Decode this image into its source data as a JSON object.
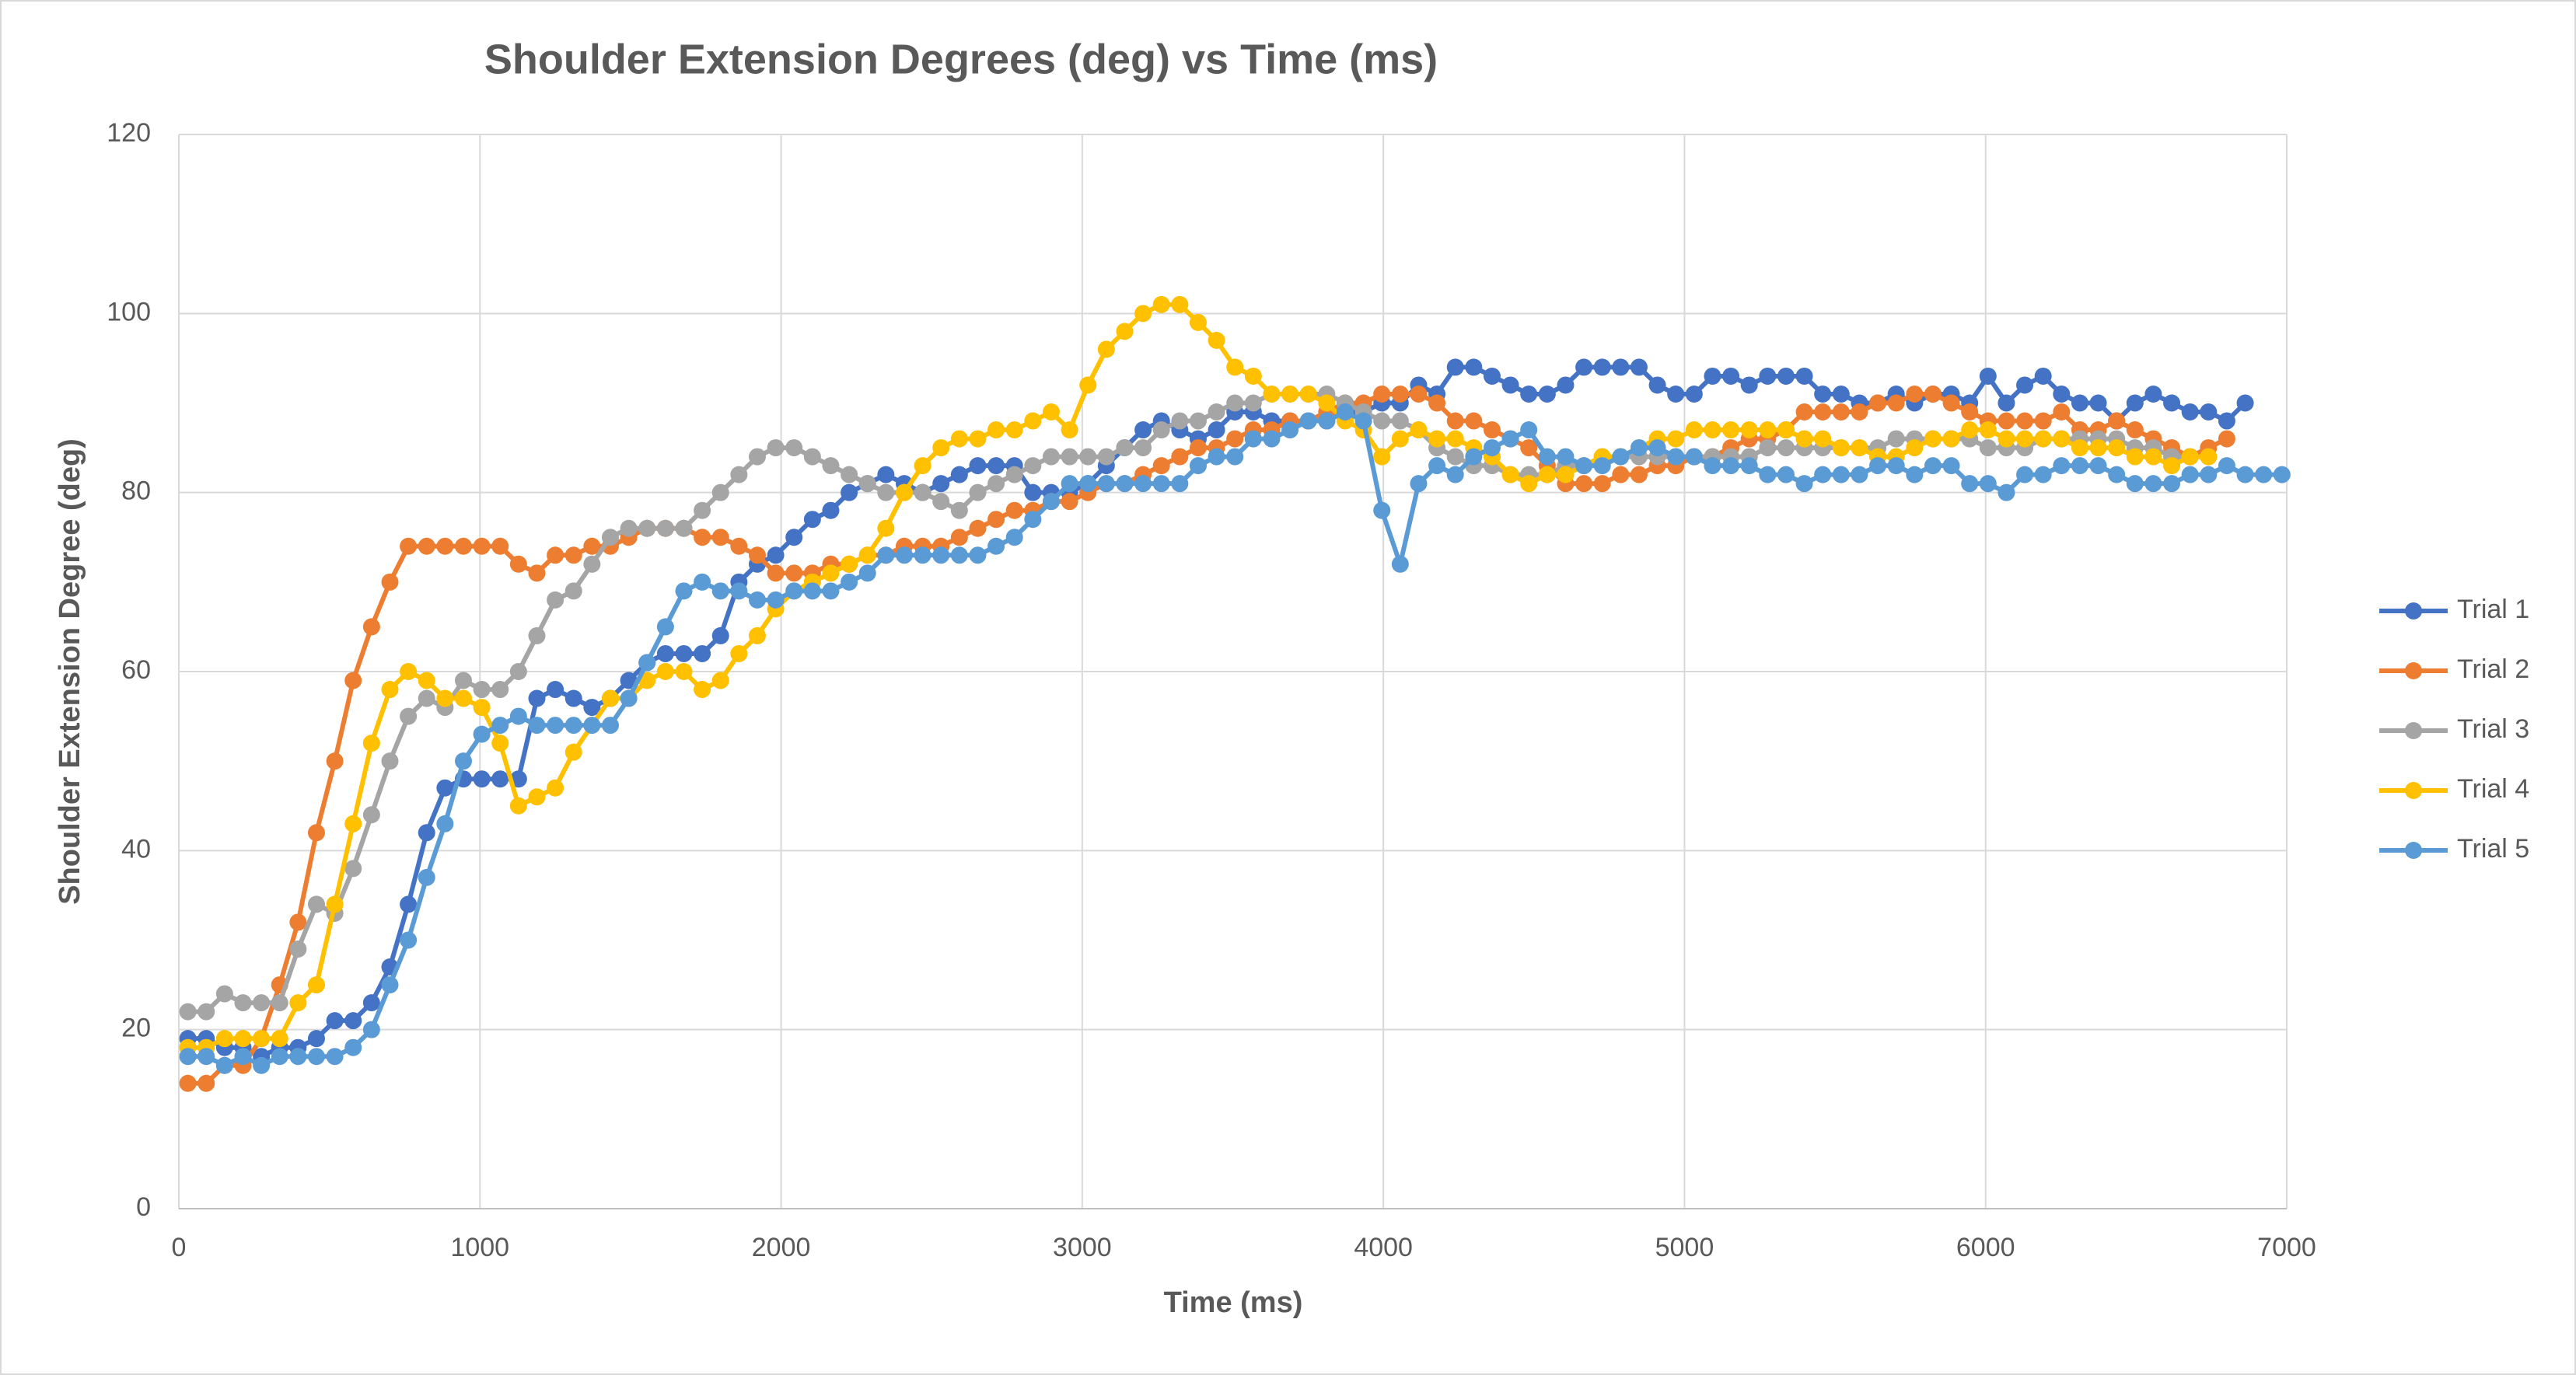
{
  "chart_data": {
    "type": "line",
    "title": "Shoulder Extension Degrees (deg) vs Time (ms)",
    "x_label": "Time (ms)",
    "y_label": "Shoulder Extension Degree (deg)",
    "xlim": [
      0,
      7000
    ],
    "xticks": [
      0,
      1000,
      2000,
      3000,
      4000,
      5000,
      6000,
      7000
    ],
    "ylim": [
      0,
      120
    ],
    "yticks": [
      0,
      20,
      40,
      60,
      80,
      100,
      120
    ],
    "grid": true,
    "legend": "right",
    "x": [
      30,
      91,
      152,
      213,
      274,
      335,
      396,
      457,
      518,
      579,
      640,
      701,
      762,
      823,
      884,
      945,
      1006,
      1067,
      1128,
      1189,
      1250,
      1311,
      1372,
      1433,
      1494,
      1555,
      1616,
      1677,
      1738,
      1799,
      1860,
      1921,
      1982,
      2043,
      2104,
      2165,
      2226,
      2287,
      2348,
      2409,
      2470,
      2531,
      2592,
      2653,
      2714,
      2775,
      2836,
      2897,
      2958,
      3019,
      3080,
      3141,
      3202,
      3263,
      3324,
      3385,
      3446,
      3507,
      3568,
      3629,
      3690,
      3751,
      3812,
      3873,
      3934,
      3995,
      4056,
      4117,
      4178,
      4239,
      4300,
      4361,
      4422,
      4483,
      4544,
      4605,
      4666,
      4727,
      4788,
      4849,
      4910,
      4971,
      5032,
      5093,
      5154,
      5215,
      5276,
      5337,
      5398,
      5459,
      5520,
      5581,
      5642,
      5703,
      5764,
      5825,
      5886,
      5947,
      6008,
      6069,
      6130,
      6191,
      6252,
      6313,
      6374,
      6435,
      6496,
      6557,
      6618,
      6679,
      6740,
      6801,
      6862,
      6923,
      6984
    ],
    "series": [
      {
        "name": "Trial 1",
        "color": "#4472c4",
        "values": [
          19,
          19,
          18,
          18,
          17,
          18,
          18,
          19,
          21,
          21,
          23,
          27,
          34,
          42,
          47,
          48,
          48,
          48,
          48,
          57,
          58,
          57,
          56,
          57,
          59,
          61,
          62,
          62,
          62,
          64,
          70,
          72,
          73,
          75,
          77,
          78,
          80,
          81,
          82,
          81,
          80,
          81,
          82,
          83,
          83,
          83,
          80,
          80,
          80,
          81,
          83,
          85,
          87,
          88,
          87,
          86,
          87,
          89,
          89,
          88,
          88,
          88,
          88,
          89,
          89,
          90,
          90,
          92,
          91,
          94,
          94,
          93,
          92,
          91,
          91,
          92,
          94,
          94,
          94,
          94,
          92,
          91,
          91,
          93,
          93,
          92,
          93,
          93,
          93,
          91,
          91,
          90,
          90,
          91,
          90,
          91,
          91,
          90,
          93,
          90,
          92,
          93,
          91,
          90,
          90,
          88,
          90,
          91,
          90,
          89,
          89,
          88,
          90,
          null,
          null
        ]
      },
      {
        "name": "Trial 2",
        "color": "#ed7d31",
        "values": [
          14,
          14,
          16,
          16,
          19,
          25,
          32,
          42,
          50,
          59,
          65,
          70,
          74,
          74,
          74,
          74,
          74,
          74,
          72,
          71,
          73,
          73,
          74,
          74,
          75,
          76,
          76,
          76,
          75,
          75,
          74,
          73,
          71,
          71,
          71,
          72,
          72,
          73,
          73,
          74,
          74,
          74,
          75,
          76,
          77,
          78,
          78,
          79,
          79,
          80,
          81,
          81,
          82,
          83,
          84,
          85,
          85,
          86,
          87,
          87,
          88,
          88,
          89,
          90,
          90,
          91,
          91,
          91,
          90,
          88,
          88,
          87,
          86,
          85,
          83,
          81,
          81,
          81,
          82,
          82,
          83,
          83,
          84,
          84,
          85,
          86,
          86,
          87,
          89,
          89,
          89,
          89,
          90,
          90,
          91,
          91,
          90,
          89,
          88,
          88,
          88,
          88,
          89,
          87,
          87,
          88,
          87,
          86,
          85,
          84,
          85,
          86,
          null,
          null,
          null
        ]
      },
      {
        "name": "Trial 3",
        "color": "#a5a5a5",
        "values": [
          22,
          22,
          24,
          23,
          23,
          23,
          29,
          34,
          33,
          38,
          44,
          50,
          55,
          57,
          56,
          59,
          58,
          58,
          60,
          64,
          68,
          69,
          72,
          75,
          76,
          76,
          76,
          76,
          78,
          80,
          82,
          84,
          85,
          85,
          84,
          83,
          82,
          81,
          80,
          80,
          80,
          79,
          78,
          80,
          81,
          82,
          83,
          84,
          84,
          84,
          84,
          85,
          85,
          87,
          88,
          88,
          89,
          90,
          90,
          91,
          91,
          91,
          91,
          90,
          89,
          88,
          88,
          87,
          85,
          84,
          83,
          83,
          82,
          82,
          82,
          83,
          83,
          84,
          84,
          84,
          84,
          84,
          84,
          84,
          84,
          84,
          85,
          85,
          85,
          85,
          85,
          85,
          85,
          86,
          86,
          86,
          86,
          86,
          85,
          85,
          85,
          86,
          86,
          86,
          86,
          86,
          85,
          85,
          84,
          84,
          84,
          null,
          null,
          null,
          null
        ]
      },
      {
        "name": "Trial 4",
        "color": "#ffc000",
        "values": [
          18,
          18,
          19,
          19,
          19,
          19,
          23,
          25,
          34,
          43,
          52,
          58,
          60,
          59,
          57,
          57,
          56,
          52,
          45,
          46,
          47,
          51,
          54,
          57,
          57,
          59,
          60,
          60,
          58,
          59,
          62,
          64,
          67,
          69,
          70,
          71,
          72,
          73,
          76,
          80,
          83,
          85,
          86,
          86,
          87,
          87,
          88,
          89,
          87,
          92,
          96,
          98,
          100,
          101,
          101,
          99,
          97,
          94,
          93,
          91,
          91,
          91,
          90,
          88,
          87,
          84,
          86,
          87,
          86,
          86,
          85,
          84,
          82,
          81,
          82,
          82,
          83,
          84,
          84,
          85,
          86,
          86,
          87,
          87,
          87,
          87,
          87,
          87,
          86,
          86,
          85,
          85,
          84,
          84,
          85,
          86,
          86,
          87,
          87,
          86,
          86,
          86,
          86,
          85,
          85,
          85,
          84,
          84,
          83,
          84,
          84,
          null,
          null,
          null,
          null
        ]
      },
      {
        "name": "Trial 5",
        "color": "#5b9bd5",
        "values": [
          17,
          17,
          16,
          17,
          16,
          17,
          17,
          17,
          17,
          18,
          20,
          25,
          30,
          37,
          43,
          50,
          53,
          54,
          55,
          54,
          54,
          54,
          54,
          54,
          57,
          61,
          65,
          69,
          70,
          69,
          69,
          68,
          68,
          69,
          69,
          69,
          70,
          71,
          73,
          73,
          73,
          73,
          73,
          73,
          74,
          75,
          77,
          79,
          81,
          81,
          81,
          81,
          81,
          81,
          81,
          83,
          84,
          84,
          86,
          86,
          87,
          88,
          88,
          89,
          88,
          78,
          72,
          81,
          83,
          82,
          84,
          85,
          86,
          87,
          84,
          84,
          83,
          83,
          84,
          85,
          85,
          84,
          84,
          83,
          83,
          83,
          82,
          82,
          81,
          82,
          82,
          82,
          83,
          83,
          82,
          83,
          83,
          81,
          81,
          80,
          82,
          82,
          83,
          83,
          83,
          82,
          81,
          81,
          81,
          82,
          82,
          83,
          82,
          82,
          82
        ]
      }
    ]
  }
}
